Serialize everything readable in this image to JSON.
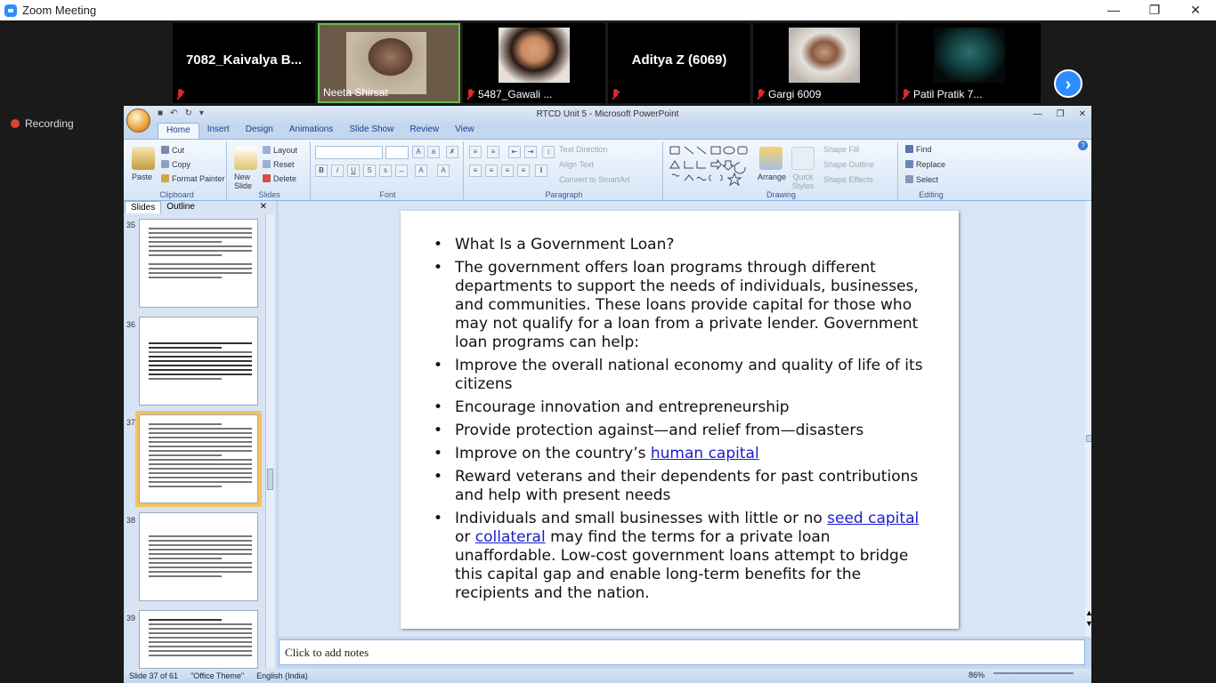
{
  "window": {
    "title": "Zoom Meeting"
  },
  "participants": [
    {
      "name": "7082_Kaivalya B...",
      "label": "",
      "muted": true,
      "video": false
    },
    {
      "name": "",
      "label": "Neeta Shirsat",
      "muted": false,
      "video": true
    },
    {
      "name": "",
      "label": "5487_Gawali ...",
      "muted": true,
      "video": true
    },
    {
      "name": "Aditya Z (6069)",
      "label": "",
      "muted": true,
      "video": false
    },
    {
      "name": "",
      "label": "Gargi 6009",
      "muted": true,
      "video": true
    },
    {
      "name": "",
      "label": "Patil Pratik 7...",
      "muted": true,
      "video": true
    }
  ],
  "recording": "Recording",
  "ppt": {
    "title": "RTCD Unit 5 - Microsoft PowerPoint",
    "tabs": [
      "Home",
      "Insert",
      "Design",
      "Animations",
      "Slide Show",
      "Review",
      "View"
    ],
    "ribbon": {
      "clipboard": {
        "label": "Clipboard",
        "paste": "Paste",
        "cut": "Cut",
        "copy": "Copy",
        "format_painter": "Format Painter"
      },
      "slides": {
        "label": "Slides",
        "new_slide": "New Slide",
        "layout": "Layout",
        "reset": "Reset",
        "delete": "Delete"
      },
      "font": {
        "label": "Font"
      },
      "paragraph": {
        "label": "Paragraph",
        "text_direction": "Text Direction",
        "align_text": "Align Text",
        "convert": "Convert to SmartArt"
      },
      "drawing": {
        "label": "Drawing",
        "arrange": "Arrange",
        "quick_styles": "Quick Styles",
        "shape_fill": "Shape Fill",
        "shape_outline": "Shape Outline",
        "shape_effects": "Shape Effects"
      },
      "editing": {
        "label": "Editing",
        "find": "Find",
        "replace": "Replace",
        "select": "Select"
      }
    },
    "pane": {
      "slides_tab": "Slides",
      "outline_tab": "Outline",
      "thumb_numbers": [
        "35",
        "36",
        "37",
        "38",
        "39"
      ]
    },
    "slide": {
      "bullet1": "What Is a Government Loan?",
      "bullet2": "The  government offers loan programs through different departments to support the needs of individuals, businesses, and communities. These loans provide capital for those who may not qualify for a loan from a private lender. Government loan programs can help:",
      "bullet3": "Improve the overall national economy and quality of life of its citizens",
      "bullet4": "Encourage innovation and entrepreneurship",
      "bullet5": "Provide protection against—and relief from—disasters",
      "bullet6_pre": "Improve on the country’s ",
      "bullet6_link": "human capital",
      "bullet7": "Reward veterans and their dependents for past contributions and help with present needs",
      "bullet8_pre": "Individuals and small businesses with little or no ",
      "bullet8_link1": "seed capital",
      "bullet8_mid": " or ",
      "bullet8_link2": "collateral",
      "bullet8_post": " may find the terms for a private loan unaffordable. Low-cost government loans attempt to bridge this capital gap and enable long-term benefits for the recipients and the nation."
    },
    "notes": "Click to add notes",
    "status": {
      "slide": "Slide 37 of 61",
      "theme": "\"Office Theme\"",
      "language": "English (India)",
      "zoom": "86%"
    }
  }
}
